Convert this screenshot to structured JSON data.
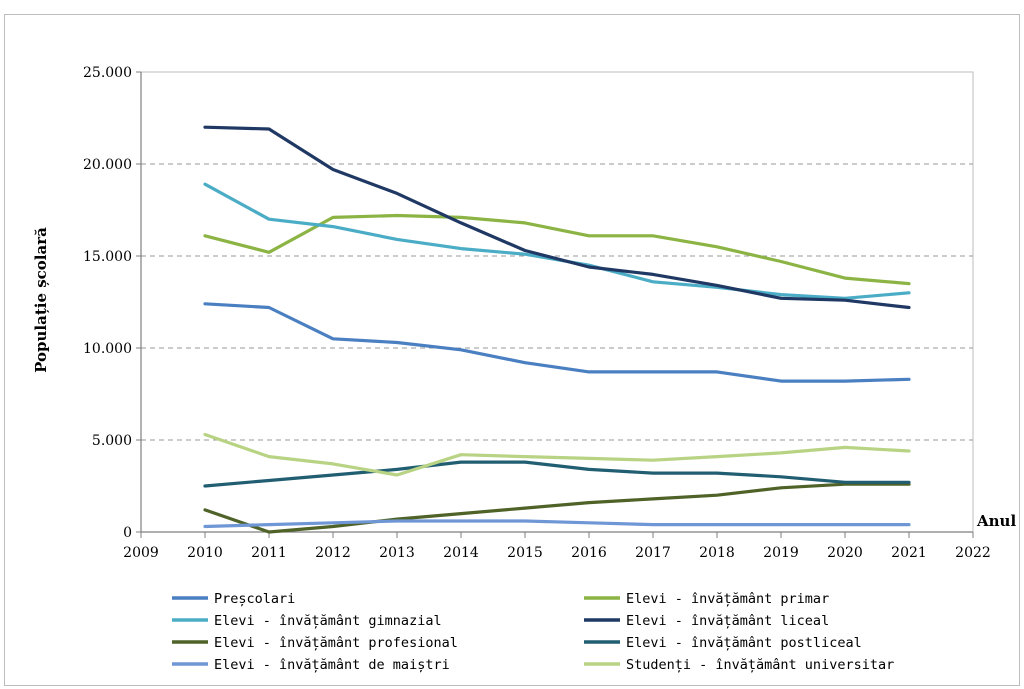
{
  "chart_data": {
    "type": "line",
    "ylabel": "Populație școlară",
    "xlabel": "Anul",
    "xlim": [
      2009,
      2022
    ],
    "ylim": [
      0,
      25000
    ],
    "x_ticks": [
      "2009",
      "2010",
      "2011",
      "2012",
      "2013",
      "2014",
      "2015",
      "2016",
      "2017",
      "2018",
      "2019",
      "2020",
      "2021",
      "2022"
    ],
    "y_ticks": [
      "0",
      "5.000",
      "10.000",
      "15.000",
      "20.000",
      "25.000"
    ],
    "grid": "horizontal-dashed",
    "legend_placement": "bottom",
    "x": [
      2010,
      2011,
      2012,
      2013,
      2014,
      2015,
      2016,
      2017,
      2018,
      2019,
      2020,
      2021
    ],
    "series": [
      {
        "name": "Preșcolari",
        "color": "#4a7fc1",
        "values": [
          12400,
          12200,
          10500,
          10300,
          9900,
          9200,
          8700,
          8700,
          8700,
          8200,
          8200,
          8300
        ]
      },
      {
        "name": "Elevi - învățământ primar",
        "color": "#8cb444",
        "values": [
          16100,
          15200,
          17100,
          17200,
          17100,
          16800,
          16100,
          16100,
          15500,
          14700,
          13800,
          13500
        ]
      },
      {
        "name": "Elevi - învățământ gimnazial",
        "color": "#4bacc6",
        "values": [
          18900,
          17000,
          16600,
          15900,
          15400,
          15100,
          14500,
          13600,
          13300,
          12900,
          12700,
          13000
        ]
      },
      {
        "name": "Elevi - învățământ liceal",
        "color": "#1f3864",
        "values": [
          22000,
          21900,
          19700,
          18400,
          16800,
          15300,
          14400,
          14000,
          13400,
          12700,
          12600,
          12200
        ]
      },
      {
        "name": "Elevi - învățământ profesional",
        "color": "#4f6228",
        "values": [
          1200,
          0,
          300,
          700,
          1000,
          1300,
          1600,
          1800,
          2000,
          2400,
          2600,
          2600
        ]
      },
      {
        "name": "Elevi - învățământ postliceal",
        "color": "#215e72",
        "values": [
          2500,
          2800,
          3100,
          3400,
          3800,
          3800,
          3400,
          3200,
          3200,
          3000,
          2700,
          2700
        ]
      },
      {
        "name": "Elevi - învățământ de maiștri",
        "color": "#6f97d6",
        "values": [
          300,
          400,
          500,
          600,
          600,
          600,
          500,
          400,
          400,
          400,
          400,
          400
        ]
      },
      {
        "name": "Studenți - învățământ universitar",
        "color": "#b8d383",
        "values": [
          5300,
          4100,
          3700,
          3100,
          4200,
          4100,
          4000,
          3900,
          4100,
          4300,
          4600,
          4400
        ]
      }
    ]
  }
}
